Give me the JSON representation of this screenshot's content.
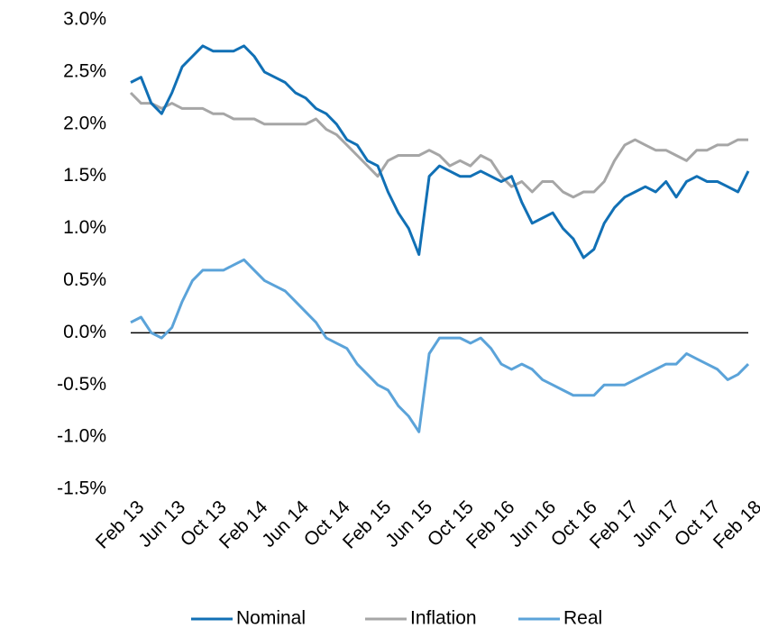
{
  "chart_data": {
    "type": "line",
    "categories": [
      "Feb 13",
      null,
      null,
      null,
      "Jun 13",
      null,
      null,
      null,
      "Oct 13",
      null,
      null,
      null,
      "Feb 14",
      null,
      null,
      null,
      "Jun 14",
      null,
      null,
      null,
      "Oct 14",
      null,
      null,
      null,
      "Feb 15",
      null,
      null,
      null,
      "Jun 15",
      null,
      null,
      null,
      "Oct 15",
      null,
      null,
      null,
      "Feb 16",
      null,
      null,
      null,
      "Jun 16",
      null,
      null,
      null,
      "Oct 16",
      null,
      null,
      null,
      "Feb 17",
      null,
      null,
      null,
      "Jun 17",
      null,
      null,
      null,
      "Oct 17",
      null,
      null,
      null,
      "Feb 18"
    ],
    "series": [
      {
        "name": "Nominal",
        "color": "#1170b5",
        "values": [
          2.4,
          2.45,
          2.2,
          2.1,
          2.3,
          2.55,
          2.65,
          2.75,
          2.7,
          2.7,
          2.7,
          2.75,
          2.65,
          2.5,
          2.45,
          2.4,
          2.3,
          2.25,
          2.15,
          2.1,
          2.0,
          1.85,
          1.8,
          1.65,
          1.6,
          1.35,
          1.15,
          1.0,
          0.75,
          1.5,
          1.6,
          1.55,
          1.5,
          1.5,
          1.55,
          1.5,
          1.45,
          1.5,
          1.25,
          1.05,
          1.1,
          1.15,
          1.0,
          0.9,
          0.72,
          0.8,
          1.05,
          1.2,
          1.3,
          1.35,
          1.4,
          1.35,
          1.45,
          1.3,
          1.45,
          1.5,
          1.45,
          1.45,
          1.4,
          1.35,
          1.55
        ]
      },
      {
        "name": "Inflation",
        "color": "#a6a6a6",
        "values": [
          2.3,
          2.2,
          2.2,
          2.15,
          2.2,
          2.15,
          2.15,
          2.15,
          2.1,
          2.1,
          2.05,
          2.05,
          2.05,
          2.0,
          2.0,
          2.0,
          2.0,
          2.0,
          2.05,
          1.95,
          1.9,
          1.8,
          1.7,
          1.6,
          1.5,
          1.65,
          1.7,
          1.7,
          1.7,
          1.75,
          1.7,
          1.6,
          1.65,
          1.6,
          1.7,
          1.65,
          1.5,
          1.4,
          1.45,
          1.35,
          1.45,
          1.45,
          1.35,
          1.3,
          1.35,
          1.35,
          1.45,
          1.65,
          1.8,
          1.85,
          1.8,
          1.75,
          1.75,
          1.7,
          1.65,
          1.75,
          1.75,
          1.8,
          1.8,
          1.85,
          1.85
        ]
      },
      {
        "name": "Real",
        "color": "#5ba3d9",
        "values": [
          0.1,
          0.15,
          0.0,
          -0.05,
          0.05,
          0.3,
          0.5,
          0.6,
          0.6,
          0.6,
          0.65,
          0.7,
          0.6,
          0.5,
          0.45,
          0.4,
          0.3,
          0.2,
          0.1,
          -0.05,
          -0.1,
          -0.15,
          -0.3,
          -0.4,
          -0.5,
          -0.55,
          -0.7,
          -0.8,
          -0.95,
          -0.2,
          -0.05,
          -0.05,
          -0.05,
          -0.1,
          -0.05,
          -0.15,
          -0.3,
          -0.35,
          -0.3,
          -0.35,
          -0.45,
          -0.5,
          -0.55,
          -0.6,
          -0.6,
          -0.6,
          -0.5,
          -0.5,
          -0.5,
          -0.45,
          -0.4,
          -0.35,
          -0.3,
          -0.3,
          -0.2,
          -0.25,
          -0.3,
          -0.35,
          -0.45,
          -0.4,
          -0.3
        ]
      }
    ],
    "ylim": [
      -1.5,
      3.0
    ],
    "yticks": [
      {
        "value": -1.5,
        "label": "-1.5%"
      },
      {
        "value": -1.0,
        "label": "-1.0%"
      },
      {
        "value": -0.5,
        "label": "-0.5%"
      },
      {
        "value": 0.0,
        "label": "0.0%"
      },
      {
        "value": 0.5,
        "label": "0.5%"
      },
      {
        "value": 1.0,
        "label": "1.0%"
      },
      {
        "value": 1.5,
        "label": "1.5%"
      },
      {
        "value": 2.0,
        "label": "2.0%"
      },
      {
        "value": 2.5,
        "label": "2.5%"
      },
      {
        "value": 3.0,
        "label": "3.0%"
      }
    ],
    "grid": false,
    "legend": "bottom"
  }
}
